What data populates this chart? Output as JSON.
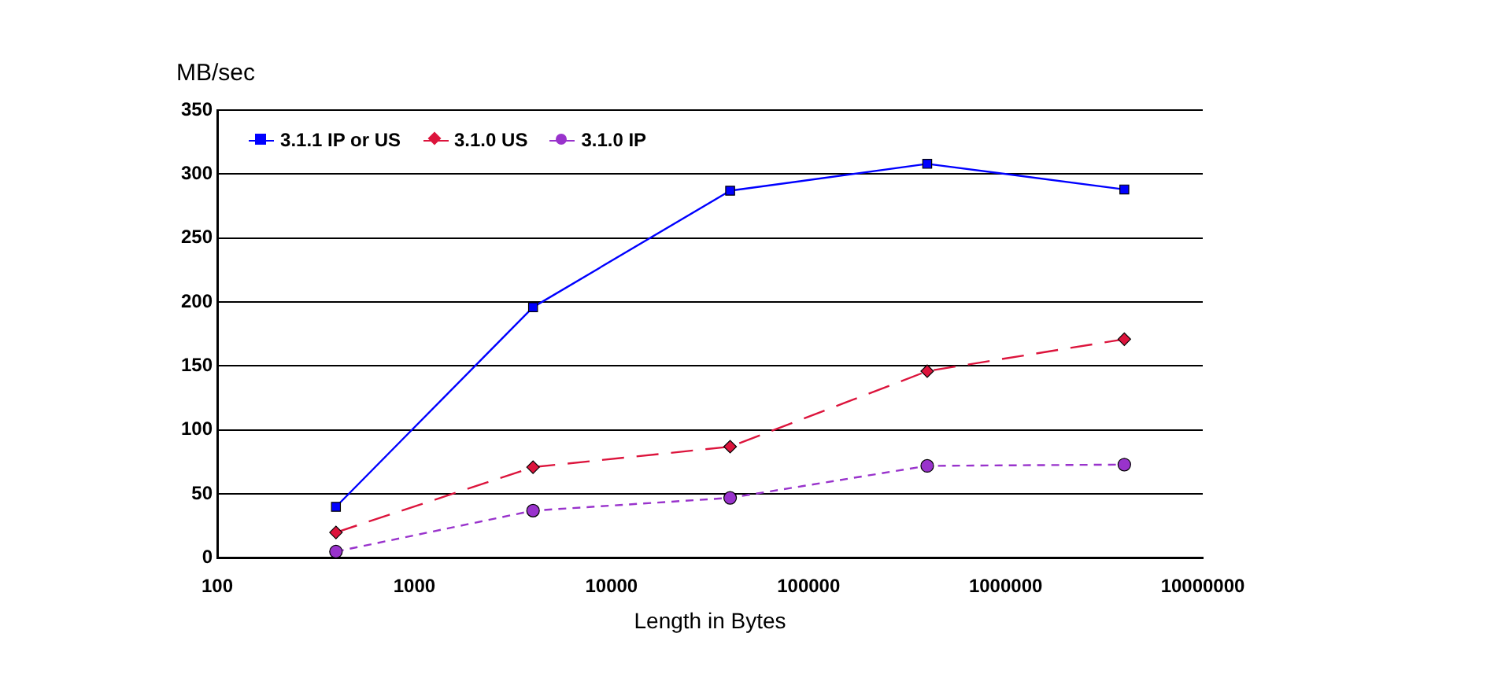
{
  "chart_data": {
    "type": "line",
    "xlabel": "Length in Bytes",
    "ylabel": "MB/sec",
    "log": "x",
    "x": [
      400,
      4000,
      40000,
      400000,
      4000000
    ],
    "xlim": [
      100,
      10000000
    ],
    "xticks": [
      100,
      1000,
      10000,
      100000,
      1000000,
      10000000
    ],
    "ylim": [
      0,
      350
    ],
    "yticks": [
      0,
      50,
      100,
      150,
      200,
      250,
      300,
      350
    ],
    "grid": "y",
    "legend": "top left",
    "series": [
      {
        "name": "3.1.1 IP or US",
        "color": "#0000ff",
        "marker": "square",
        "line_style": "solid",
        "values": [
          40,
          196,
          287,
          308,
          288
        ]
      },
      {
        "name": "3.1.0 US",
        "color": "#dc143c",
        "marker": "diamond",
        "line_style": "dashed",
        "values": [
          20,
          71,
          87,
          146,
          171
        ]
      },
      {
        "name": "3.1.0 IP",
        "color": "#9933cc",
        "marker": "circle",
        "line_style": "dotted",
        "values": [
          5,
          37,
          47,
          72,
          73
        ]
      }
    ]
  }
}
